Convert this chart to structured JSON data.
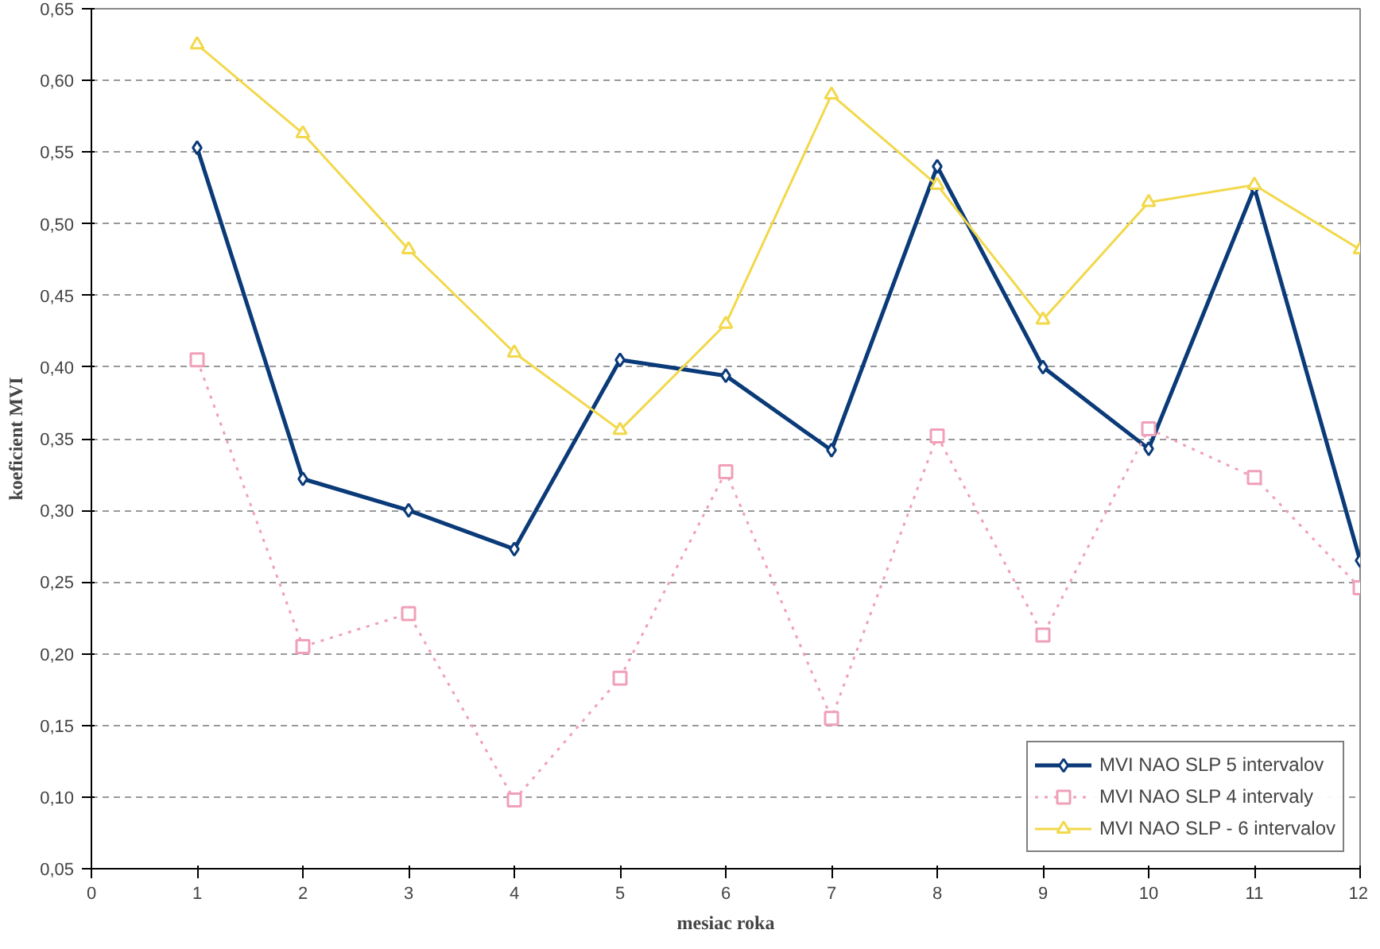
{
  "chart_data": {
    "type": "line",
    "xlabel": "mesiac roka",
    "ylabel": "koeficient MVI",
    "x": [
      1,
      2,
      3,
      4,
      5,
      6,
      7,
      8,
      9,
      10,
      11,
      12
    ],
    "xlim": [
      0,
      12
    ],
    "xticks": [
      0,
      1,
      2,
      3,
      4,
      5,
      6,
      7,
      8,
      9,
      10,
      11,
      12
    ],
    "ylim": [
      0.05,
      0.65
    ],
    "yticks": [
      {
        "value": 0.05,
        "label": "0,05"
      },
      {
        "value": 0.1,
        "label": "0,10"
      },
      {
        "value": 0.15,
        "label": "0,15"
      },
      {
        "value": 0.2,
        "label": "0,20"
      },
      {
        "value": 0.25,
        "label": "0,25"
      },
      {
        "value": 0.3,
        "label": "0,30"
      },
      {
        "value": 0.35,
        "label": "0,35"
      },
      {
        "value": 0.4,
        "label": "0,40"
      },
      {
        "value": 0.45,
        "label": "0,45"
      },
      {
        "value": 0.5,
        "label": "0,50"
      },
      {
        "value": 0.55,
        "label": "0,55"
      },
      {
        "value": 0.6,
        "label": "0,60"
      },
      {
        "value": 0.65,
        "label": "0,65"
      }
    ],
    "grid": "y",
    "legend": "bottom right",
    "series": [
      {
        "name": "MVI NAO SLP 5 intervalov",
        "color": "#0a3a78",
        "marker": "diamond",
        "line_style": "solid",
        "values": [
          0.553,
          0.322,
          0.3,
          0.273,
          0.405,
          0.394,
          0.342,
          0.54,
          0.4,
          0.343,
          0.525,
          0.265
        ]
      },
      {
        "name": "MVI NAO SLP 4 intervaly",
        "color": "#f0a0b8",
        "marker": "square",
        "line_style": "dotted",
        "values": [
          0.405,
          0.205,
          0.228,
          0.098,
          0.183,
          0.327,
          0.155,
          0.352,
          0.213,
          0.357,
          0.323,
          0.246
        ]
      },
      {
        "name": "MVI NAO SLP - 6 intervalov",
        "color": "#f2d84a",
        "marker": "triangle",
        "line_style": "solid",
        "values": [
          0.625,
          0.563,
          0.482,
          0.41,
          0.356,
          0.43,
          0.59,
          0.527,
          0.433,
          0.515,
          0.527,
          0.482
        ]
      }
    ]
  }
}
